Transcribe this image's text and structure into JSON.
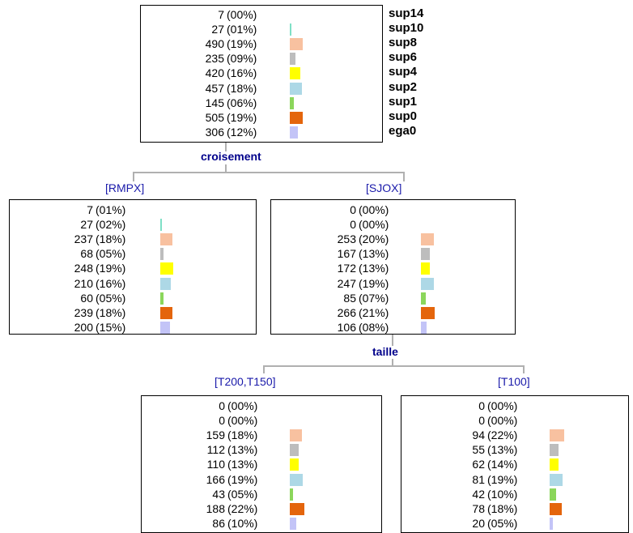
{
  "colors": {
    "sup14": "#ffffff",
    "sup10": "#7fe0c6",
    "sup8": "#f8c1a0",
    "sup6": "#bdbdbd",
    "sup4": "#ffff00",
    "sup2": "#add8e6",
    "sup1": "#8bd65b",
    "sup0": "#e4650c",
    "ega0": "#c3c4f7"
  },
  "classes": [
    "sup14",
    "sup10",
    "sup8",
    "sup6",
    "sup4",
    "sup2",
    "sup1",
    "sup0",
    "ega0"
  ],
  "splits": {
    "root": "croisement",
    "sjox": "taille"
  },
  "nodes": {
    "root": {
      "rows": [
        {
          "count": "7",
          "pct": "(00%)"
        },
        {
          "count": "27",
          "pct": "(01%)"
        },
        {
          "count": "490",
          "pct": "(19%)"
        },
        {
          "count": "235",
          "pct": "(09%)"
        },
        {
          "count": "420",
          "pct": "(16%)"
        },
        {
          "count": "457",
          "pct": "(18%)"
        },
        {
          "count": "145",
          "pct": "(06%)"
        },
        {
          "count": "505",
          "pct": "(19%)"
        },
        {
          "count": "306",
          "pct": "(12%)"
        }
      ],
      "shares": [
        0.0,
        0.01,
        0.19,
        0.09,
        0.16,
        0.18,
        0.06,
        0.19,
        0.12
      ]
    },
    "rmpx": {
      "branch": "[RMPX]",
      "rows": [
        {
          "count": "7",
          "pct": "(01%)"
        },
        {
          "count": "27",
          "pct": "(02%)"
        },
        {
          "count": "237",
          "pct": "(18%)"
        },
        {
          "count": "68",
          "pct": "(05%)"
        },
        {
          "count": "248",
          "pct": "(19%)"
        },
        {
          "count": "210",
          "pct": "(16%)"
        },
        {
          "count": "60",
          "pct": "(05%)"
        },
        {
          "count": "239",
          "pct": "(18%)"
        },
        {
          "count": "200",
          "pct": "(15%)"
        }
      ],
      "shares": [
        0.01,
        0.02,
        0.18,
        0.05,
        0.19,
        0.16,
        0.05,
        0.18,
        0.15
      ]
    },
    "sjox": {
      "branch": "[SJOX]",
      "rows": [
        {
          "count": "0",
          "pct": "(00%)"
        },
        {
          "count": "0",
          "pct": "(00%)"
        },
        {
          "count": "253",
          "pct": "(20%)"
        },
        {
          "count": "167",
          "pct": "(13%)"
        },
        {
          "count": "172",
          "pct": "(13%)"
        },
        {
          "count": "247",
          "pct": "(19%)"
        },
        {
          "count": "85",
          "pct": "(07%)"
        },
        {
          "count": "266",
          "pct": "(21%)"
        },
        {
          "count": "106",
          "pct": "(08%)"
        }
      ],
      "shares": [
        0.0,
        0.0,
        0.2,
        0.13,
        0.13,
        0.19,
        0.07,
        0.21,
        0.08
      ]
    },
    "t200": {
      "branch": "[T200,T150]",
      "rows": [
        {
          "count": "0",
          "pct": "(00%)"
        },
        {
          "count": "0",
          "pct": "(00%)"
        },
        {
          "count": "159",
          "pct": "(18%)"
        },
        {
          "count": "112",
          "pct": "(13%)"
        },
        {
          "count": "110",
          "pct": "(13%)"
        },
        {
          "count": "166",
          "pct": "(19%)"
        },
        {
          "count": "43",
          "pct": "(05%)"
        },
        {
          "count": "188",
          "pct": "(22%)"
        },
        {
          "count": "86",
          "pct": "(10%)"
        }
      ],
      "shares": [
        0.0,
        0.0,
        0.18,
        0.13,
        0.13,
        0.19,
        0.05,
        0.22,
        0.1
      ]
    },
    "t100": {
      "branch": "[T100]",
      "rows": [
        {
          "count": "0",
          "pct": "(00%)"
        },
        {
          "count": "0",
          "pct": "(00%)"
        },
        {
          "count": "94",
          "pct": "(22%)"
        },
        {
          "count": "55",
          "pct": "(13%)"
        },
        {
          "count": "62",
          "pct": "(14%)"
        },
        {
          "count": "81",
          "pct": "(19%)"
        },
        {
          "count": "42",
          "pct": "(10%)"
        },
        {
          "count": "78",
          "pct": "(18%)"
        },
        {
          "count": "20",
          "pct": "(05%)"
        }
      ],
      "shares": [
        0.0,
        0.0,
        0.22,
        0.13,
        0.14,
        0.19,
        0.1,
        0.18,
        0.05
      ]
    }
  }
}
